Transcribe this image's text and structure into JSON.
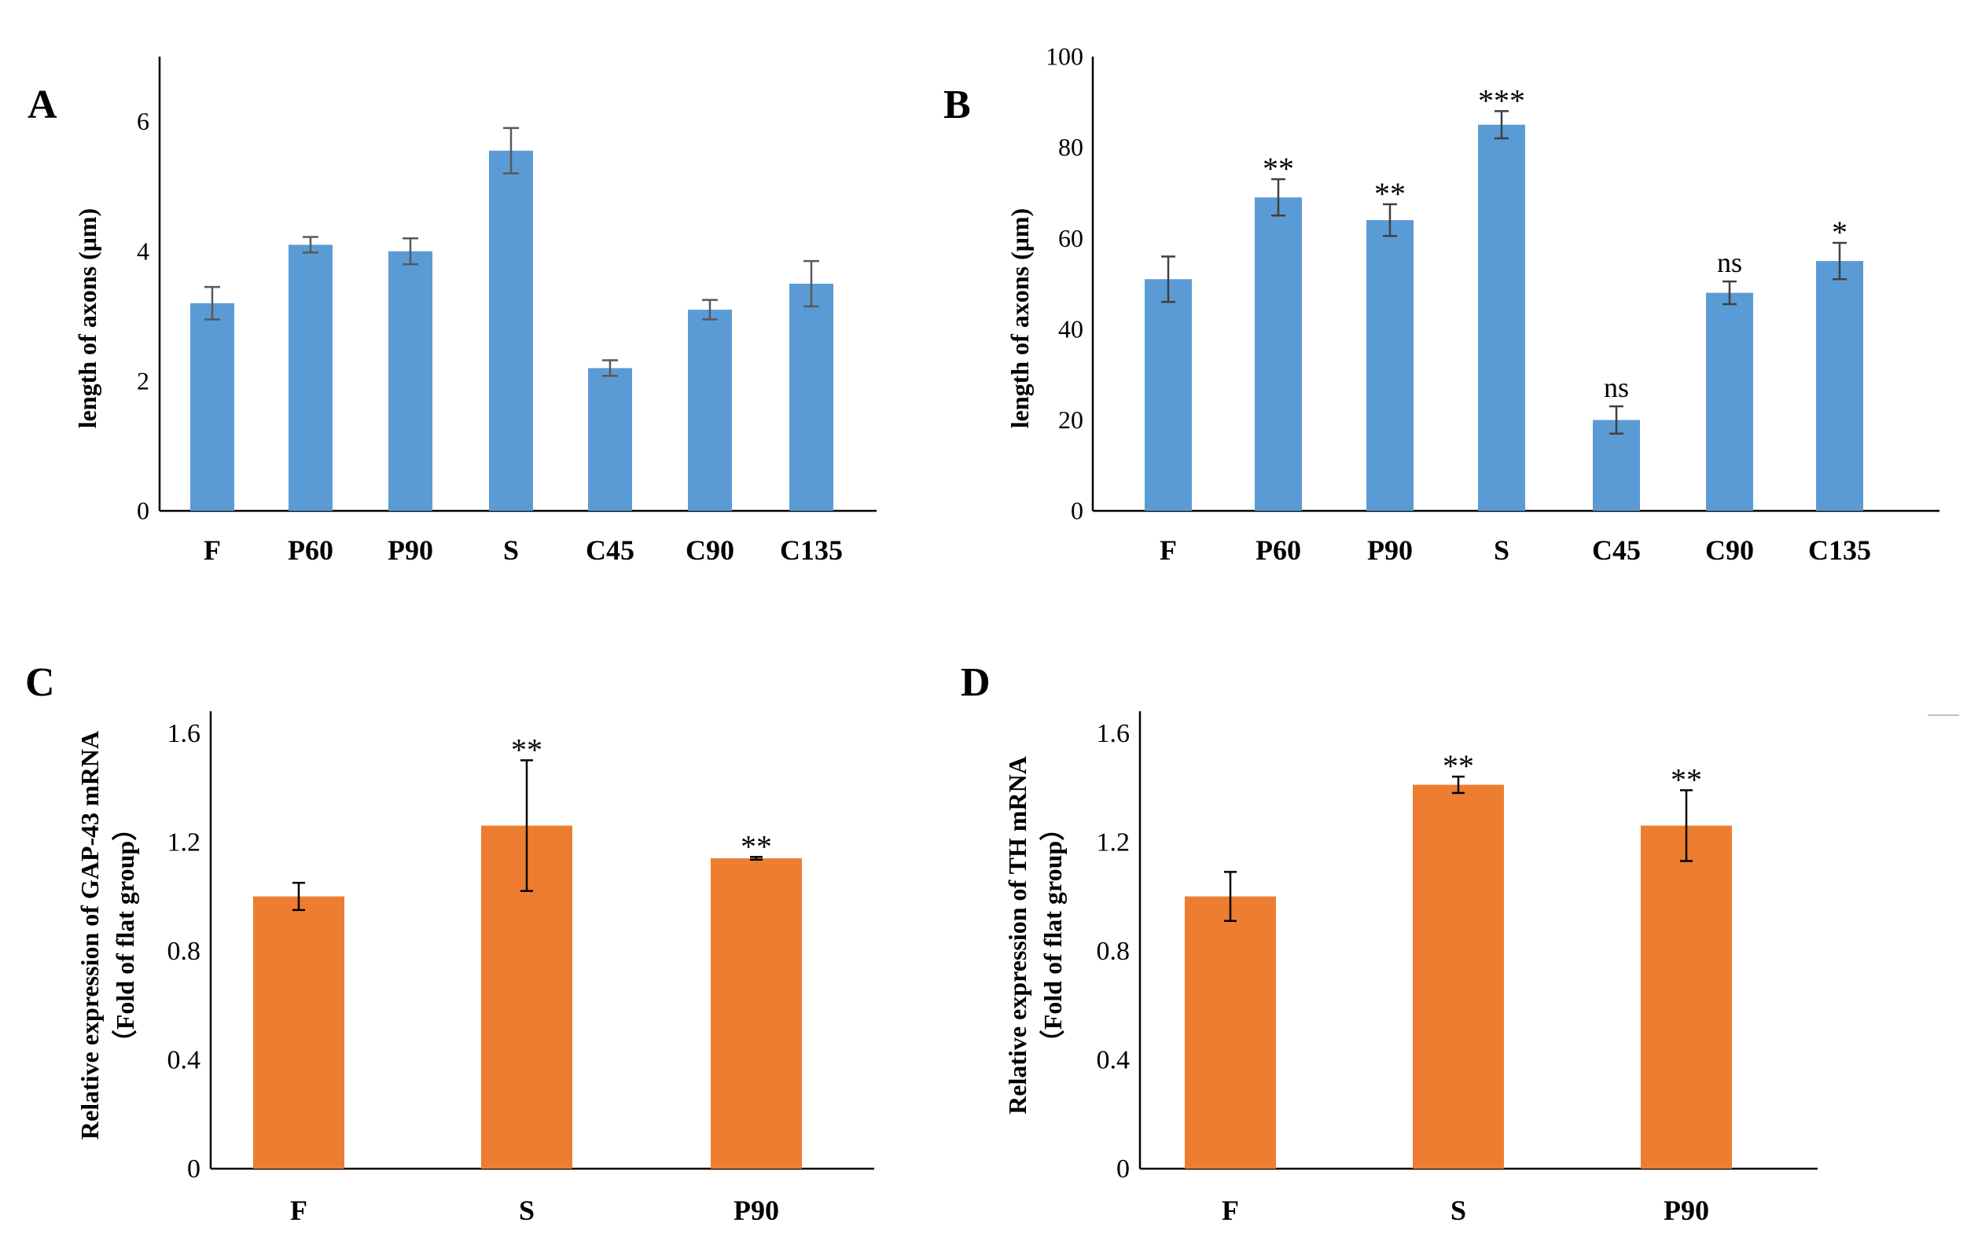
{
  "chart_data": [
    {
      "panel": "A",
      "type": "bar",
      "title": "",
      "xlabel": "",
      "ylabel": "length of axons (μm)",
      "ylim": [
        0,
        7
      ],
      "yticks": [
        0,
        2,
        4,
        6
      ],
      "categories": [
        "F",
        "P60",
        "P90",
        "S",
        "C45",
        "C90",
        "C135"
      ],
      "series": [
        {
          "name": "length of axons",
          "color": "#5b9bd5",
          "values": [
            3.2,
            4.1,
            4.0,
            5.55,
            2.2,
            3.1,
            3.5
          ],
          "errors": [
            0.25,
            0.12,
            0.2,
            0.35,
            0.12,
            0.15,
            0.35
          ],
          "annotations": [
            "",
            "",
            "",
            "",
            "",
            "",
            ""
          ]
        }
      ]
    },
    {
      "panel": "B",
      "type": "bar",
      "title": "",
      "xlabel": "",
      "ylabel": "length of axons (μm)",
      "ylim": [
        0,
        100
      ],
      "yticks": [
        0,
        20,
        40,
        60,
        80,
        100
      ],
      "categories": [
        "F",
        "P60",
        "P90",
        "S",
        "C45",
        "C90",
        "C135"
      ],
      "series": [
        {
          "name": "length of axons",
          "color": "#5b9bd5",
          "values": [
            51,
            69,
            64,
            85,
            20,
            48,
            55
          ],
          "errors": [
            5,
            4,
            3.5,
            3,
            3,
            2.5,
            4
          ],
          "annotations": [
            "",
            "**",
            "**",
            "***",
            "ns",
            "ns",
            "*"
          ]
        }
      ]
    },
    {
      "panel": "C",
      "type": "bar",
      "title": "",
      "xlabel": "",
      "ylabel": "Relative expression of GAP-43 mRNA",
      "ylabel2": "（Fold of flat group）",
      "ylim": [
        0,
        1.68
      ],
      "yticks": [
        "0",
        "0.4",
        "0.8",
        "1.2",
        "1.6"
      ],
      "categories": [
        "F",
        "S",
        "P90"
      ],
      "series": [
        {
          "name": "GAP-43",
          "color": "#ed7d31",
          "values": [
            1.0,
            1.26,
            1.14
          ],
          "errors": [
            0.05,
            0.24,
            0.005
          ],
          "annotations": [
            "",
            "**",
            "**"
          ]
        }
      ]
    },
    {
      "panel": "D",
      "type": "bar",
      "title": "",
      "xlabel": "",
      "ylabel": "Relative expression of  TH mRNA",
      "ylabel2": "（Fold of flat group）",
      "ylim": [
        0,
        1.68
      ],
      "yticks": [
        "0",
        "0.4",
        "0.8",
        "1.2",
        "1.6"
      ],
      "categories": [
        "F",
        "S",
        "P90"
      ],
      "series": [
        {
          "name": "TH",
          "color": "#ed7d31",
          "values": [
            1.0,
            1.41,
            1.26
          ],
          "errors": [
            0.09,
            0.03,
            0.13
          ],
          "annotations": [
            "",
            "**",
            "**"
          ]
        }
      ]
    }
  ]
}
